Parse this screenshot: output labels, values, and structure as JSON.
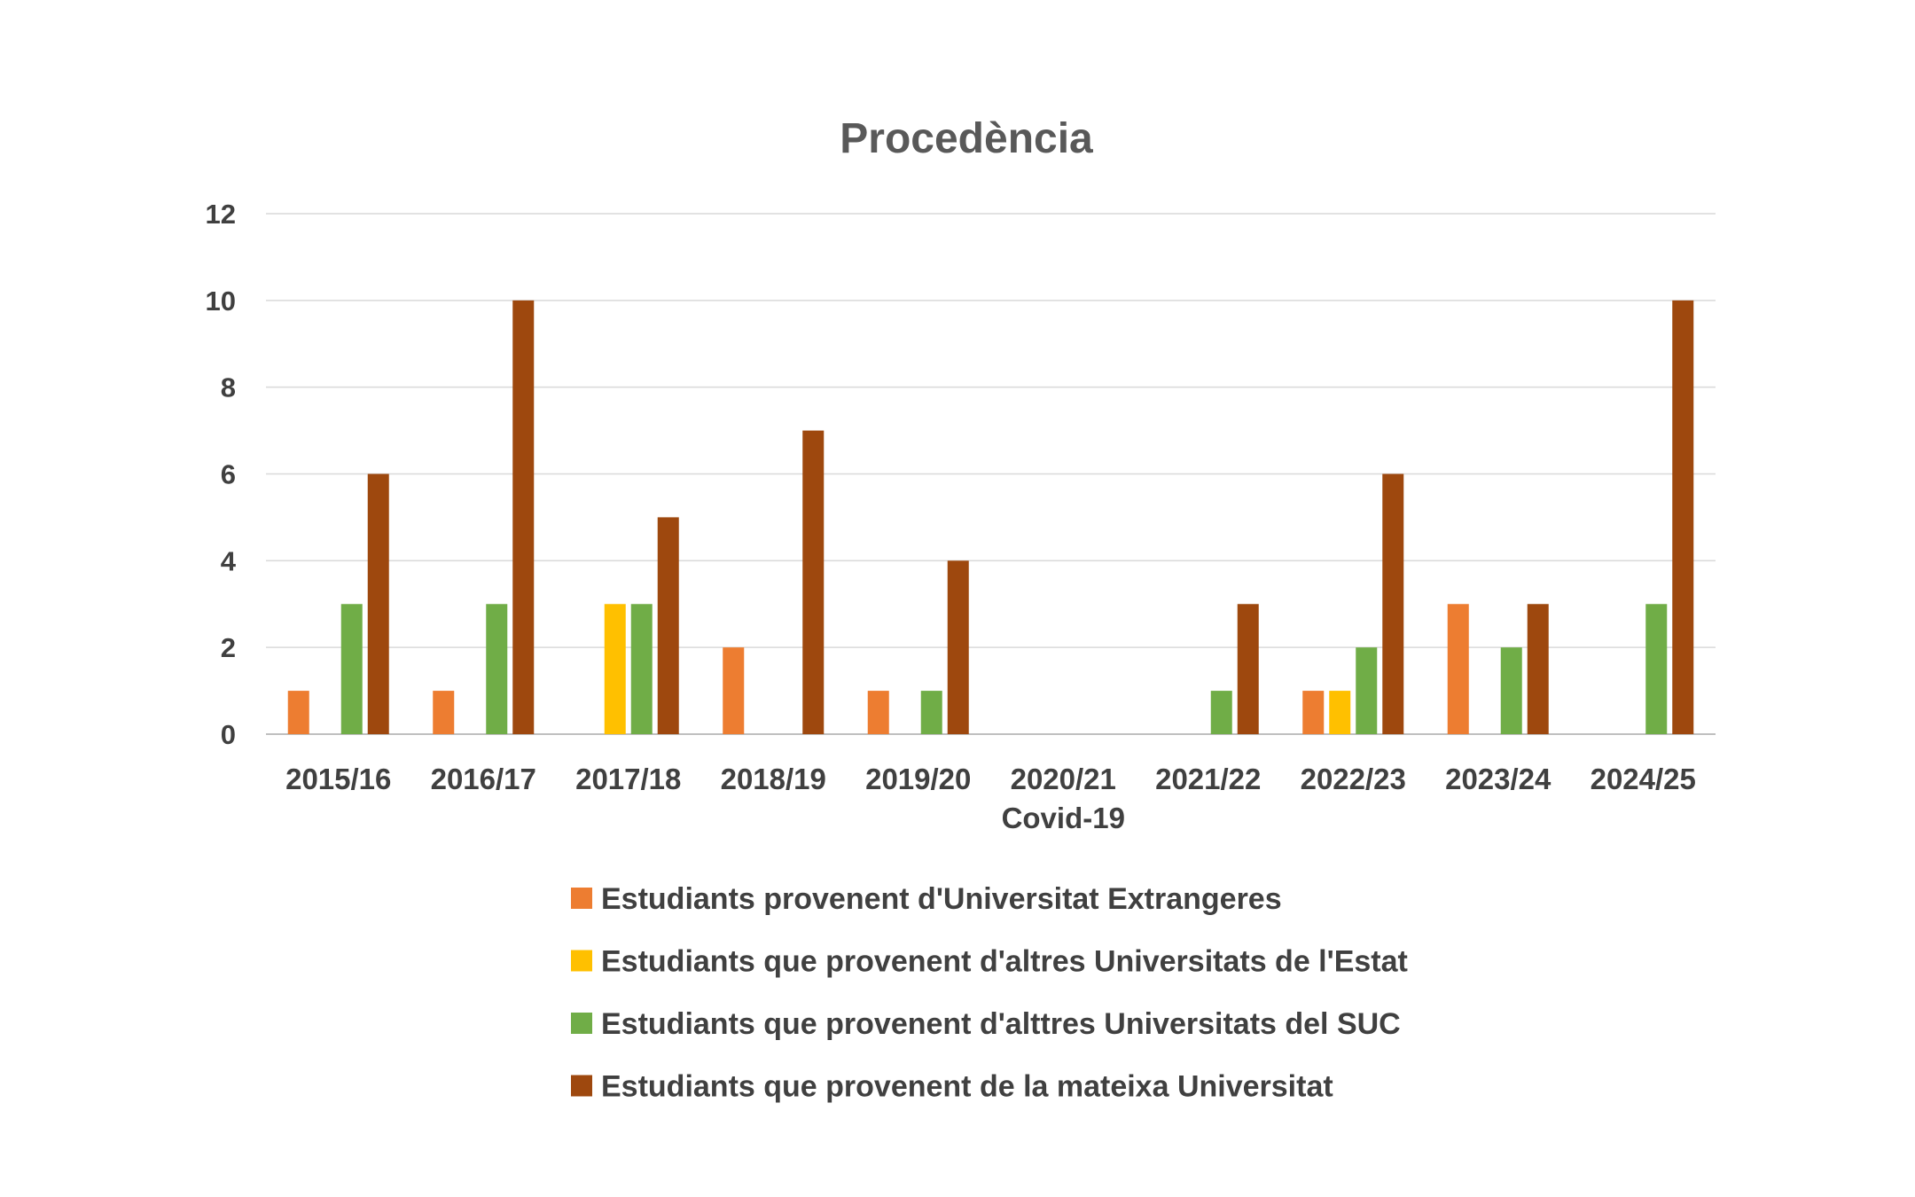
{
  "chart_data": {
    "type": "bar",
    "title": "Procedència",
    "categories": [
      "2015/16",
      "2016/17",
      "2017/18",
      "2018/19",
      "2019/20",
      "2020/21\nCovid-19",
      "2021/22",
      "2022/23",
      "2023/24",
      "2024/25"
    ],
    "series": [
      {
        "name": "Estudiants provenent d'Universitat Extrangeres",
        "color": "#ED7D31",
        "values": [
          1,
          1,
          0,
          2,
          1,
          0,
          0,
          1,
          3,
          0
        ]
      },
      {
        "name": "Estudiants que provenent d'altres Universitats de l'Estat",
        "color": "#FFC000",
        "values": [
          0,
          0,
          3,
          0,
          0,
          0,
          0,
          1,
          0,
          0
        ]
      },
      {
        "name": "Estudiants que provenent d'alttres Universitats del SUC",
        "color": "#70AD47",
        "values": [
          3,
          3,
          3,
          0,
          1,
          0,
          1,
          2,
          2,
          3
        ]
      },
      {
        "name": "Estudiants que provenent de la mateixa Universitat",
        "color": "#9E480E",
        "values": [
          6,
          10,
          5,
          7,
          4,
          0,
          3,
          6,
          3,
          10
        ]
      }
    ],
    "ylim": [
      0,
      12
    ],
    "yticks": [
      0,
      2,
      4,
      6,
      8,
      10,
      12
    ],
    "xlabel": "",
    "ylabel": "",
    "grid": true,
    "legend_position": "bottom"
  }
}
